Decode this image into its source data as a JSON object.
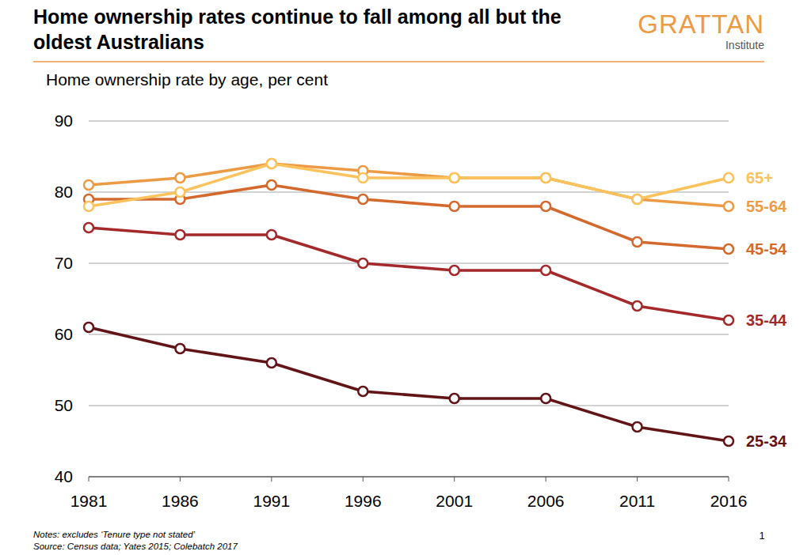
{
  "chart_data": {
    "type": "line",
    "title": "Home ownership rates continue to fall among all but the oldest Australians",
    "subtitle": "Home ownership rate by age, per cent",
    "brand": "GRATTAN",
    "brand_sub": "Institute",
    "notes": [
      "Notes: excludes ‘Tenure type not stated’",
      "Source: Census data; Yates 2015; Colebatch 2017"
    ],
    "page_number": "1",
    "x": [
      1981,
      1986,
      1991,
      1996,
      2001,
      2006,
      2011,
      2016
    ],
    "xlim": [
      1981,
      2016
    ],
    "xticks": [
      1981,
      1986,
      1991,
      1996,
      2001,
      2006,
      2011,
      2016
    ],
    "ylim": [
      40,
      90
    ],
    "yticks": [
      40,
      50,
      60,
      70,
      80,
      90
    ],
    "grid": true,
    "marker": "circle",
    "series": [
      {
        "name": "65+",
        "color": "#fcc25c",
        "values": [
          78,
          80,
          84,
          82,
          82,
          82,
          79,
          82
        ]
      },
      {
        "name": "55-64",
        "color": "#ec9a44",
        "values": [
          81,
          82,
          84,
          83,
          82,
          82,
          79,
          78
        ]
      },
      {
        "name": "45-54",
        "color": "#d4692e",
        "values": [
          79,
          79,
          81,
          79,
          78,
          78,
          73,
          72
        ]
      },
      {
        "name": "35-44",
        "color": "#a4292b",
        "values": [
          75,
          74,
          74,
          70,
          69,
          69,
          64,
          62
        ]
      },
      {
        "name": "25-34",
        "color": "#621417",
        "values": [
          61,
          58,
          56,
          52,
          51,
          51,
          47,
          45
        ]
      }
    ]
  }
}
